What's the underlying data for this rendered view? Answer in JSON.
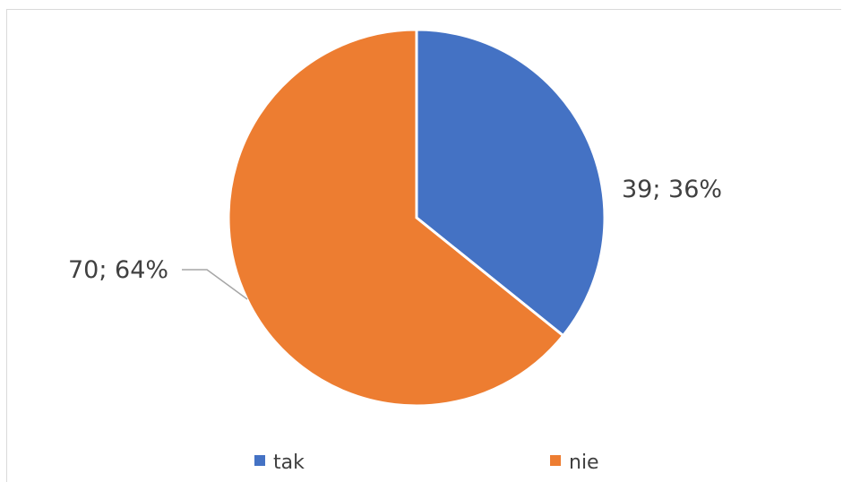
{
  "chart_data": {
    "type": "pie",
    "categories": [
      "tak",
      "nie"
    ],
    "values": [
      39,
      70
    ],
    "percent_labels": [
      "36%",
      "64%"
    ],
    "data_labels": [
      "39; 36%",
      "70; 64%"
    ],
    "colors": [
      "#4472C4",
      "#ED7D31"
    ],
    "start_angle_deg": 0,
    "direction": "clockwise",
    "legend_position": "bottom",
    "title": ""
  }
}
